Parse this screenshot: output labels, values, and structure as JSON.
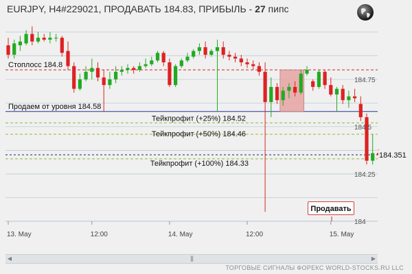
{
  "header": {
    "prefix": "EURJPY, H4#229021, ПРОДАВАТЬ 184.83, ПРИБЫЛЬ - ",
    "pips": "27",
    "suffix": " пипс"
  },
  "sell_button_label": "Продавать",
  "footer_text": "ТОРГОВЫЕ СИГНАЛЫ ФОРЕКС WORLD-STOCKS.RU LLC",
  "icons": {
    "globe": "globe-icon",
    "scroll_left": "arrow-left-icon",
    "scroll_right": "arrow-right-icon",
    "scroll_grip": "grip-icon"
  },
  "colors": {
    "bull": "#22aa22",
    "bear": "#dd2222",
    "stop_line": "#cc2222",
    "entry_line": "#223399",
    "tp_line": "#88bb33",
    "current_line": "#222266",
    "zone_fill": "#e8a8a8",
    "grid": "#bccbd6"
  },
  "chart_data": {
    "type": "candlestick",
    "symbol": "EURJPY",
    "timeframe": "H4",
    "ylim": [
      184.0,
      185.05
    ],
    "y_ticks": [
      "184.75",
      "184.5",
      "184.25",
      "184"
    ],
    "x_labels": [
      {
        "label": "13. May",
        "index": 0
      },
      {
        "label": "12:00",
        "index": 14
      },
      {
        "label": "14. May",
        "index": 27
      },
      {
        "label": "12:00",
        "index": 40
      },
      {
        "label": "15. May",
        "index": 54
      }
    ],
    "levels": [
      {
        "name": "stop_loss",
        "label": "Стоплосс 184.8",
        "price": 184.8
      },
      {
        "name": "entry",
        "label": "Продаем от уровня 184.58",
        "price": 184.58
      },
      {
        "name": "tp25",
        "label": "Тейкпрофит (+25%) 184.52",
        "price": 184.52
      },
      {
        "name": "tp50",
        "label": "Тейкпрофит (+50%) 184.46",
        "price": 184.46
      },
      {
        "name": "tp100",
        "label": "Тейкпрофит (+100%) 184.33",
        "price": 184.33
      }
    ],
    "current_price": "184.351",
    "signal_zone": {
      "start_index": 46,
      "end_index": 49,
      "high": 184.8,
      "low": 184.58
    },
    "candles": [
      {
        "o": 184.93,
        "h": 184.97,
        "l": 184.86,
        "c": 184.88
      },
      {
        "o": 184.88,
        "h": 184.96,
        "l": 184.86,
        "c": 184.94
      },
      {
        "o": 184.93,
        "h": 184.98,
        "l": 184.9,
        "c": 184.95
      },
      {
        "o": 184.94,
        "h": 185.01,
        "l": 184.93,
        "c": 184.99
      },
      {
        "o": 184.99,
        "h": 185.03,
        "l": 184.93,
        "c": 184.95
      },
      {
        "o": 184.95,
        "h": 185.0,
        "l": 184.94,
        "c": 184.97
      },
      {
        "o": 184.97,
        "h": 184.99,
        "l": 184.95,
        "c": 184.96
      },
      {
        "o": 184.96,
        "h": 185.0,
        "l": 184.94,
        "c": 184.97
      },
      {
        "o": 184.97,
        "h": 184.99,
        "l": 184.95,
        "c": 184.97
      },
      {
        "o": 184.97,
        "h": 184.98,
        "l": 184.87,
        "c": 184.89
      },
      {
        "o": 184.9,
        "h": 184.95,
        "l": 184.8,
        "c": 184.82
      },
      {
        "o": 184.82,
        "h": 184.84,
        "l": 184.68,
        "c": 184.7
      },
      {
        "o": 184.7,
        "h": 184.78,
        "l": 184.69,
        "c": 184.75
      },
      {
        "o": 184.75,
        "h": 184.82,
        "l": 184.74,
        "c": 184.79
      },
      {
        "o": 184.79,
        "h": 184.86,
        "l": 184.75,
        "c": 184.81
      },
      {
        "o": 184.81,
        "h": 184.84,
        "l": 184.74,
        "c": 184.76
      },
      {
        "o": 184.76,
        "h": 184.8,
        "l": 184.58,
        "c": 184.72
      },
      {
        "o": 184.72,
        "h": 184.79,
        "l": 184.7,
        "c": 184.75
      },
      {
        "o": 184.75,
        "h": 184.82,
        "l": 184.73,
        "c": 184.79
      },
      {
        "o": 184.79,
        "h": 184.82,
        "l": 184.77,
        "c": 184.8
      },
      {
        "o": 184.8,
        "h": 184.83,
        "l": 184.78,
        "c": 184.81
      },
      {
        "o": 184.81,
        "h": 184.82,
        "l": 184.78,
        "c": 184.8
      },
      {
        "o": 184.8,
        "h": 184.84,
        "l": 184.79,
        "c": 184.82
      },
      {
        "o": 184.82,
        "h": 184.86,
        "l": 184.81,
        "c": 184.83
      },
      {
        "o": 184.83,
        "h": 184.87,
        "l": 184.82,
        "c": 184.85
      },
      {
        "o": 184.85,
        "h": 184.9,
        "l": 184.84,
        "c": 184.89
      },
      {
        "o": 184.89,
        "h": 184.9,
        "l": 184.82,
        "c": 184.84
      },
      {
        "o": 184.84,
        "h": 184.86,
        "l": 184.71,
        "c": 184.72
      },
      {
        "o": 184.72,
        "h": 184.83,
        "l": 184.71,
        "c": 184.82
      },
      {
        "o": 184.82,
        "h": 184.86,
        "l": 184.81,
        "c": 184.85
      },
      {
        "o": 184.85,
        "h": 184.89,
        "l": 184.84,
        "c": 184.87
      },
      {
        "o": 184.87,
        "h": 184.91,
        "l": 184.86,
        "c": 184.9
      },
      {
        "o": 184.9,
        "h": 184.94,
        "l": 184.88,
        "c": 184.92
      },
      {
        "o": 184.92,
        "h": 184.95,
        "l": 184.86,
        "c": 184.88
      },
      {
        "o": 184.88,
        "h": 184.91,
        "l": 184.87,
        "c": 184.9
      },
      {
        "o": 184.9,
        "h": 184.96,
        "l": 184.58,
        "c": 184.92
      },
      {
        "o": 184.92,
        "h": 184.95,
        "l": 184.86,
        "c": 184.88
      },
      {
        "o": 184.88,
        "h": 184.9,
        "l": 184.85,
        "c": 184.87
      },
      {
        "o": 184.87,
        "h": 184.89,
        "l": 184.84,
        "c": 184.86
      },
      {
        "o": 184.86,
        "h": 184.88,
        "l": 184.82,
        "c": 184.84
      },
      {
        "o": 184.84,
        "h": 184.86,
        "l": 184.81,
        "c": 184.83
      },
      {
        "o": 184.83,
        "h": 184.85,
        "l": 184.8,
        "c": 184.82
      },
      {
        "o": 184.82,
        "h": 184.84,
        "l": 184.77,
        "c": 184.79
      },
      {
        "o": 184.79,
        "h": 184.84,
        "l": 184.05,
        "c": 184.63
      },
      {
        "o": 184.63,
        "h": 184.76,
        "l": 184.55,
        "c": 184.71
      },
      {
        "o": 184.71,
        "h": 184.73,
        "l": 184.62,
        "c": 184.64
      },
      {
        "o": 184.64,
        "h": 184.71,
        "l": 184.61,
        "c": 184.69
      },
      {
        "o": 184.69,
        "h": 184.73,
        "l": 184.65,
        "c": 184.71
      },
      {
        "o": 184.71,
        "h": 184.74,
        "l": 184.66,
        "c": 184.68
      },
      {
        "o": 184.68,
        "h": 184.8,
        "l": 184.67,
        "c": 184.78
      },
      {
        "o": 184.78,
        "h": 184.82,
        "l": 184.77,
        "c": 184.8
      },
      {
        "o": 184.74,
        "h": 184.75,
        "l": 184.69,
        "c": 184.71
      },
      {
        "o": 184.71,
        "h": 184.8,
        "l": 184.7,
        "c": 184.79
      },
      {
        "o": 184.79,
        "h": 184.8,
        "l": 184.7,
        "c": 184.72
      },
      {
        "o": 184.72,
        "h": 184.76,
        "l": 184.66,
        "c": 184.67
      },
      {
        "o": 184.67,
        "h": 184.71,
        "l": 184.58,
        "c": 184.7
      },
      {
        "o": 184.7,
        "h": 184.72,
        "l": 184.62,
        "c": 184.64
      },
      {
        "o": 184.64,
        "h": 184.69,
        "l": 184.6,
        "c": 184.66
      },
      {
        "o": 184.66,
        "h": 184.7,
        "l": 184.63,
        "c": 184.65
      },
      {
        "o": 184.62,
        "h": 184.66,
        "l": 184.53,
        "c": 184.55
      },
      {
        "o": 184.55,
        "h": 184.57,
        "l": 184.3,
        "c": 184.32
      },
      {
        "o": 184.32,
        "h": 184.46,
        "l": 184.3,
        "c": 184.36
      },
      {
        "o": 184.36,
        "h": 184.38,
        "l": 184.33,
        "c": 184.35
      }
    ]
  }
}
